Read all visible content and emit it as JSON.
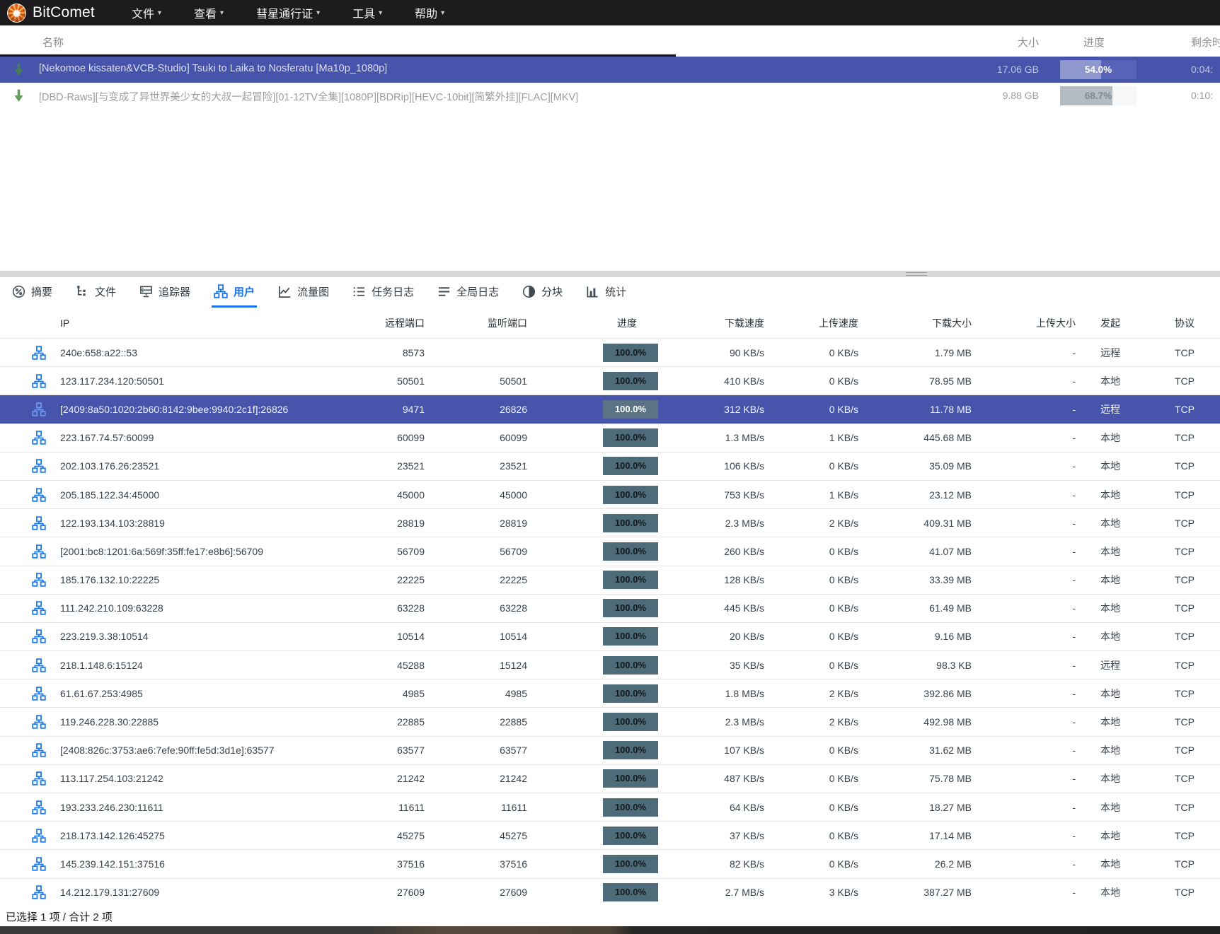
{
  "app": {
    "title": "BitComet"
  },
  "menubar": {
    "items": [
      {
        "label": "文件",
        "name": "menu-item-file"
      },
      {
        "label": "查看",
        "name": "menu-item-view"
      },
      {
        "label": "彗星通行证",
        "name": "menu-item-comet-passport"
      },
      {
        "label": "工具",
        "name": "menu-item-tools"
      },
      {
        "label": "帮助",
        "name": "menu-item-help"
      }
    ]
  },
  "torrent_panel": {
    "headers": {
      "name": "名称",
      "size": "大小",
      "progress": "进度",
      "remaining": "剩余时间"
    },
    "torrents": [
      {
        "name": "[Nekomoe kissaten&VCB-Studio] Tsuki to Laika to Nosferatu [Ma10p_1080p]",
        "size": "17.06 GB",
        "progress_label": "54.0%",
        "progress_pct": 54.0,
        "remaining": "0:04:",
        "selected": true
      },
      {
        "name": "[DBD-Raws][与变成了异世界美少女的大叔一起冒险][01-12TV全集][1080P][BDRip][HEVC-10bit][简繁外挂][FLAC][MKV]",
        "size": "9.88 GB",
        "progress_label": "68.7%",
        "progress_pct": 68.7,
        "remaining": "0:10:",
        "selected": false
      }
    ]
  },
  "detail_tabs": [
    {
      "label": "摘要",
      "icon": "summary-icon",
      "name": "tab-summary",
      "active": false
    },
    {
      "label": "文件",
      "icon": "files-icon",
      "name": "tab-files",
      "active": false
    },
    {
      "label": "追踪器",
      "icon": "tracker-icon",
      "name": "tab-trackers",
      "active": false
    },
    {
      "label": "用户",
      "icon": "peers-icon",
      "name": "tab-peers",
      "active": true
    },
    {
      "label": "流量图",
      "icon": "traffic-chart-icon",
      "name": "tab-traffic-graph",
      "active": false
    },
    {
      "label": "任务日志",
      "icon": "task-log-icon",
      "name": "tab-task-log",
      "active": false
    },
    {
      "label": "全局日志",
      "icon": "global-log-icon",
      "name": "tab-global-log",
      "active": false
    },
    {
      "label": "分块",
      "icon": "pieces-icon",
      "name": "tab-pieces",
      "active": false
    },
    {
      "label": "统计",
      "icon": "stats-icon",
      "name": "tab-statistics",
      "active": false
    }
  ],
  "peer_table": {
    "headers": {
      "ip": "IP",
      "remote_port": "远程端口",
      "listen_port": "监听端口",
      "progress": "进度",
      "down_speed": "下载速度",
      "up_speed": "上传速度",
      "down_size": "下载大小",
      "up_size": "上传大小",
      "origin": "发起",
      "protocol": "协议"
    },
    "peers": [
      {
        "ip": "240e:658:a22::53",
        "remote_port": "8573",
        "listen_port": "",
        "progress": "100.0%",
        "down_speed": "90 KB/s",
        "up_speed": "0 KB/s",
        "down_size": "1.79 MB",
        "up_size": "-",
        "origin": "远程",
        "protocol": "TCP",
        "selected": false
      },
      {
        "ip": "123.117.234.120:50501",
        "remote_port": "50501",
        "listen_port": "50501",
        "progress": "100.0%",
        "down_speed": "410 KB/s",
        "up_speed": "0 KB/s",
        "down_size": "78.95 MB",
        "up_size": "-",
        "origin": "本地",
        "protocol": "TCP",
        "selected": false
      },
      {
        "ip": "[2409:8a50:1020:2b60:8142:9bee:9940:2c1f]:26826",
        "remote_port": "9471",
        "listen_port": "26826",
        "progress": "100.0%",
        "down_speed": "312 KB/s",
        "up_speed": "0 KB/s",
        "down_size": "11.78 MB",
        "up_size": "-",
        "origin": "远程",
        "protocol": "TCP",
        "selected": true
      },
      {
        "ip": "223.167.74.57:60099",
        "remote_port": "60099",
        "listen_port": "60099",
        "progress": "100.0%",
        "down_speed": "1.3 MB/s",
        "up_speed": "1 KB/s",
        "down_size": "445.68 MB",
        "up_size": "-",
        "origin": "本地",
        "protocol": "TCP",
        "selected": false
      },
      {
        "ip": "202.103.176.26:23521",
        "remote_port": "23521",
        "listen_port": "23521",
        "progress": "100.0%",
        "down_speed": "106 KB/s",
        "up_speed": "0 KB/s",
        "down_size": "35.09 MB",
        "up_size": "-",
        "origin": "本地",
        "protocol": "TCP",
        "selected": false
      },
      {
        "ip": "205.185.122.34:45000",
        "remote_port": "45000",
        "listen_port": "45000",
        "progress": "100.0%",
        "down_speed": "753 KB/s",
        "up_speed": "1 KB/s",
        "down_size": "23.12 MB",
        "up_size": "-",
        "origin": "本地",
        "protocol": "TCP",
        "selected": false
      },
      {
        "ip": "122.193.134.103:28819",
        "remote_port": "28819",
        "listen_port": "28819",
        "progress": "100.0%",
        "down_speed": "2.3 MB/s",
        "up_speed": "2 KB/s",
        "down_size": "409.31 MB",
        "up_size": "-",
        "origin": "本地",
        "protocol": "TCP",
        "selected": false
      },
      {
        "ip": "[2001:bc8:1201:6a:569f:35ff:fe17:e8b6]:56709",
        "remote_port": "56709",
        "listen_port": "56709",
        "progress": "100.0%",
        "down_speed": "260 KB/s",
        "up_speed": "0 KB/s",
        "down_size": "41.07 MB",
        "up_size": "-",
        "origin": "本地",
        "protocol": "TCP",
        "selected": false
      },
      {
        "ip": "185.176.132.10:22225",
        "remote_port": "22225",
        "listen_port": "22225",
        "progress": "100.0%",
        "down_speed": "128 KB/s",
        "up_speed": "0 KB/s",
        "down_size": "33.39 MB",
        "up_size": "-",
        "origin": "本地",
        "protocol": "TCP",
        "selected": false
      },
      {
        "ip": "111.242.210.109:63228",
        "remote_port": "63228",
        "listen_port": "63228",
        "progress": "100.0%",
        "down_speed": "445 KB/s",
        "up_speed": "0 KB/s",
        "down_size": "61.49 MB",
        "up_size": "-",
        "origin": "本地",
        "protocol": "TCP",
        "selected": false
      },
      {
        "ip": "223.219.3.38:10514",
        "remote_port": "10514",
        "listen_port": "10514",
        "progress": "100.0%",
        "down_speed": "20 KB/s",
        "up_speed": "0 KB/s",
        "down_size": "9.16 MB",
        "up_size": "-",
        "origin": "本地",
        "protocol": "TCP",
        "selected": false
      },
      {
        "ip": "218.1.148.6:15124",
        "remote_port": "45288",
        "listen_port": "15124",
        "progress": "100.0%",
        "down_speed": "35 KB/s",
        "up_speed": "0 KB/s",
        "down_size": "98.3 KB",
        "up_size": "-",
        "origin": "远程",
        "protocol": "TCP",
        "selected": false
      },
      {
        "ip": "61.61.67.253:4985",
        "remote_port": "4985",
        "listen_port": "4985",
        "progress": "100.0%",
        "down_speed": "1.8 MB/s",
        "up_speed": "2 KB/s",
        "down_size": "392.86 MB",
        "up_size": "-",
        "origin": "本地",
        "protocol": "TCP",
        "selected": false
      },
      {
        "ip": "119.246.228.30:22885",
        "remote_port": "22885",
        "listen_port": "22885",
        "progress": "100.0%",
        "down_speed": "2.3 MB/s",
        "up_speed": "2 KB/s",
        "down_size": "492.98 MB",
        "up_size": "-",
        "origin": "本地",
        "protocol": "TCP",
        "selected": false
      },
      {
        "ip": "[2408:826c:3753:ae6:7efe:90ff:fe5d:3d1e]:63577",
        "remote_port": "63577",
        "listen_port": "63577",
        "progress": "100.0%",
        "down_speed": "107 KB/s",
        "up_speed": "0 KB/s",
        "down_size": "31.62 MB",
        "up_size": "-",
        "origin": "本地",
        "protocol": "TCP",
        "selected": false
      },
      {
        "ip": "113.117.254.103:21242",
        "remote_port": "21242",
        "listen_port": "21242",
        "progress": "100.0%",
        "down_speed": "487 KB/s",
        "up_speed": "0 KB/s",
        "down_size": "75.78 MB",
        "up_size": "-",
        "origin": "本地",
        "protocol": "TCP",
        "selected": false
      },
      {
        "ip": "193.233.246.230:11611",
        "remote_port": "11611",
        "listen_port": "11611",
        "progress": "100.0%",
        "down_speed": "64 KB/s",
        "up_speed": "0 KB/s",
        "down_size": "18.27 MB",
        "up_size": "-",
        "origin": "本地",
        "protocol": "TCP",
        "selected": false
      },
      {
        "ip": "218.173.142.126:45275",
        "remote_port": "45275",
        "listen_port": "45275",
        "progress": "100.0%",
        "down_speed": "37 KB/s",
        "up_speed": "0 KB/s",
        "down_size": "17.14 MB",
        "up_size": "-",
        "origin": "本地",
        "protocol": "TCP",
        "selected": false
      },
      {
        "ip": "145.239.142.151:37516",
        "remote_port": "37516",
        "listen_port": "37516",
        "progress": "100.0%",
        "down_speed": "82 KB/s",
        "up_speed": "0 KB/s",
        "down_size": "26.2 MB",
        "up_size": "-",
        "origin": "本地",
        "protocol": "TCP",
        "selected": false
      },
      {
        "ip": "14.212.179.131:27609",
        "remote_port": "27609",
        "listen_port": "27609",
        "progress": "100.0%",
        "down_speed": "2.7 MB/s",
        "up_speed": "3 KB/s",
        "down_size": "387.27 MB",
        "up_size": "-",
        "origin": "本地",
        "protocol": "TCP",
        "selected": false
      }
    ]
  },
  "status_bar": {
    "text": "已选择 1 项 / 合计 2 项"
  },
  "colors": {
    "selection_blue": "#4654ab",
    "accent_blue": "#1a73e8",
    "peer_icon_blue": "#1e7bf2",
    "progress_badge": "#4e6b7a",
    "arrow_green": "#62a258",
    "menubar_bg": "#1c1c1e"
  }
}
